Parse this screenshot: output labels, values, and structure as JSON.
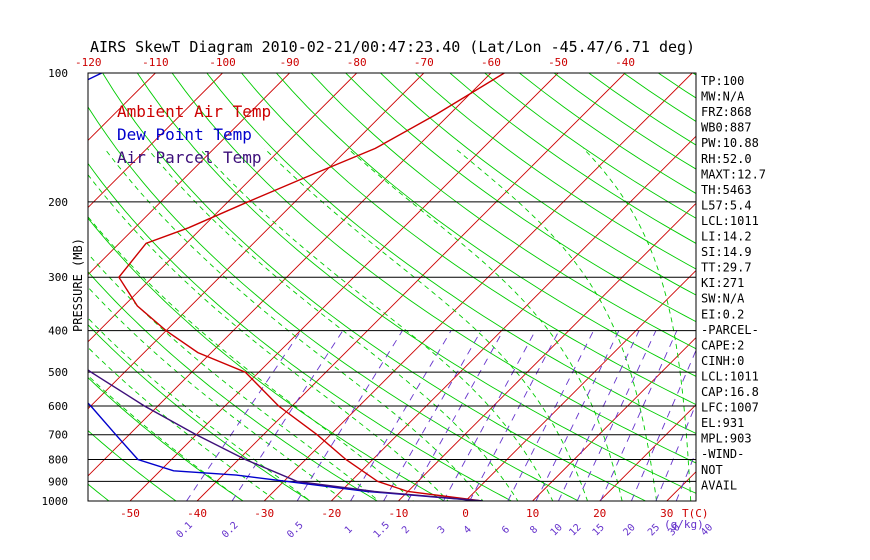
{
  "title": "AIRS SkewT Diagram 2010-02-21/00:47:23.40 (Lat/Lon -45.47/6.71 deg)",
  "colors": {
    "ambient": "#cc0000",
    "dewpoint": "#0000cc",
    "parcel": "#3d0f7a",
    "isotherm": "#cc0000",
    "dry_adiabat": "#00cc00",
    "moist_adiabat": "#00cc00",
    "mixing_ratio": "#6633cc",
    "isobar": "#000000",
    "tick_label_bottom": "#cc0000",
    "mixing_label": "#6633cc"
  },
  "chart_data": {
    "type": "line",
    "subtype": "skew-t log-p",
    "title": "AIRS SkewT Diagram 2010-02-21/00:47:23.40 (Lat/Lon -45.47/6.71 deg)",
    "ylabel": "PRESSURE (MB)",
    "y_scale": "log",
    "y_reversed": true,
    "ylim": [
      1000,
      100
    ],
    "xlim_at_1000mb": [
      -53,
      41
    ],
    "y_ticks": [
      100,
      200,
      300,
      400,
      500,
      600,
      700,
      800,
      900,
      1000
    ],
    "top_ticks": [
      -120,
      -110,
      -100,
      -90,
      -80,
      -70,
      -60,
      -50,
      -40
    ],
    "bottom_ticks": [
      -50,
      -40,
      -30,
      -20,
      -10,
      0,
      10,
      20,
      30
    ],
    "bottom_axis_label": "T(C)",
    "mixing_ratio_ticks": [
      "0.1",
      "0.2",
      "0.5",
      "1",
      "1.5",
      "2",
      "3",
      "4",
      "6",
      "8",
      "10",
      "12",
      "15",
      "20",
      "25",
      "30",
      "40"
    ],
    "mixing_ratio_label": "(g/kg)",
    "legend": {
      "placement": "top-left",
      "entries": [
        "Ambient Air Temp",
        "Dew Point Temp",
        "Air Parcel Temp"
      ]
    },
    "series": [
      {
        "name": "Ambient Air Temp",
        "color_key": "ambient",
        "points": [
          [
            100,
            -58
          ],
          [
            125,
            -62
          ],
          [
            150,
            -66
          ],
          [
            175,
            -72
          ],
          [
            200,
            -77
          ],
          [
            230,
            -82
          ],
          [
            250,
            -86
          ],
          [
            300,
            -85
          ],
          [
            350,
            -78
          ],
          [
            400,
            -70
          ],
          [
            450,
            -62
          ],
          [
            500,
            -52
          ],
          [
            600,
            -42
          ],
          [
            700,
            -32
          ],
          [
            800,
            -24
          ],
          [
            900,
            -16
          ],
          [
            950,
            -10
          ],
          [
            1000,
            2.5
          ]
        ]
      },
      {
        "name": "Dew Point Temp",
        "color_key": "dewpoint",
        "points": [
          [
            100,
            -118
          ],
          [
            150,
            -130
          ],
          [
            175,
            -132
          ],
          [
            200,
            -130
          ],
          [
            240,
            -125
          ],
          [
            300,
            -118
          ],
          [
            400,
            -105
          ],
          [
            450,
            -88
          ],
          [
            500,
            -80
          ],
          [
            600,
            -70
          ],
          [
            700,
            -62
          ],
          [
            800,
            -55
          ],
          [
            850,
            -48
          ],
          [
            870,
            -38
          ],
          [
            950,
            -16
          ],
          [
            1000,
            2.5
          ]
        ]
      },
      {
        "name": "Air Parcel Temp",
        "color_key": "parcel",
        "points": [
          [
            100,
            -147
          ],
          [
            150,
            -134
          ],
          [
            200,
            -122
          ],
          [
            250,
            -113
          ],
          [
            300,
            -104
          ],
          [
            350,
            -98
          ],
          [
            400,
            -91
          ],
          [
            450,
            -82
          ],
          [
            500,
            -75
          ],
          [
            600,
            -62
          ],
          [
            700,
            -50
          ],
          [
            800,
            -39
          ],
          [
            900,
            -28
          ],
          [
            950,
            -15
          ],
          [
            1000,
            2.5
          ]
        ]
      }
    ]
  },
  "stats": [
    "TP:100",
    "MW:N/A",
    "FRZ:868",
    "WB0:887",
    "PW:10.88",
    "RH:52.0",
    "MAXT:12.7",
    "TH:5463",
    "L57:5.4",
    "LCL:1011",
    "LI:14.2",
    "SI:14.9",
    "TT:29.7",
    "KI:271",
    "SW:N/A",
    "EI:0.2",
    "-PARCEL-",
    "CAPE:2",
    "CINH:0",
    "LCL:1011",
    "CAP:16.8",
    "LFC:1007",
    "EL:931",
    "MPL:903",
    "-WIND-",
    "NOT",
    "AVAIL"
  ]
}
